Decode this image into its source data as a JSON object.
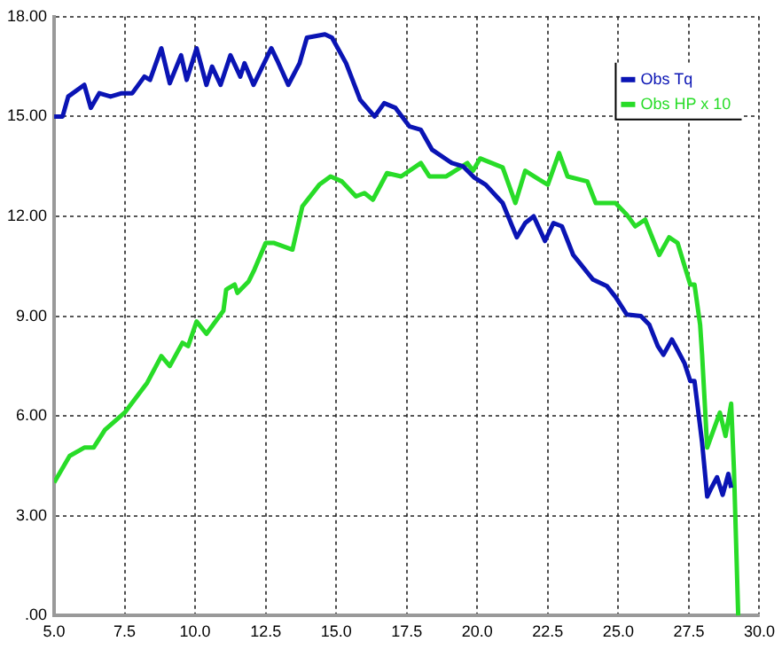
{
  "chart_data": {
    "type": "line",
    "xlim": [
      5,
      30
    ],
    "ylim": [
      0,
      18
    ],
    "xticks": [
      {
        "value": 5,
        "label": "5.0"
      },
      {
        "value": 7.5,
        "label": "7.5"
      },
      {
        "value": 10,
        "label": "10.0"
      },
      {
        "value": 12.5,
        "label": "12.5"
      },
      {
        "value": 15,
        "label": "15.0"
      },
      {
        "value": 17.5,
        "label": "17.5"
      },
      {
        "value": 20,
        "label": "20.0"
      },
      {
        "value": 22.5,
        "label": "22.5"
      },
      {
        "value": 25,
        "label": "25.0"
      },
      {
        "value": 27.5,
        "label": "27.5"
      },
      {
        "value": 30,
        "label": "30.0"
      }
    ],
    "yticks": [
      {
        "value": 0,
        "label": ".00"
      },
      {
        "value": 3,
        "label": "3.00"
      },
      {
        "value": 6,
        "label": "6.00"
      },
      {
        "value": 9,
        "label": "9.00"
      },
      {
        "value": 12,
        "label": "12.00"
      },
      {
        "value": 15,
        "label": "15.00"
      },
      {
        "value": 18,
        "label": "18.00"
      }
    ],
    "grid": true,
    "legend": "top right",
    "marker": "none",
    "line_style": "solid",
    "series": [
      {
        "name": "Obs Tq",
        "color": "#0a14b4",
        "x": [
          5.0,
          5.3,
          5.5,
          6.07,
          6.3,
          6.6,
          7.0,
          7.4,
          7.77,
          8.2,
          8.4,
          8.8,
          9.1,
          9.5,
          9.7,
          10.05,
          10.4,
          10.6,
          10.9,
          11.25,
          11.6,
          11.75,
          12.07,
          12.7,
          12.9,
          13.3,
          13.7,
          13.96,
          14.6,
          14.85,
          15.35,
          15.85,
          16.36,
          16.7,
          17.1,
          17.6,
          18.0,
          18.4,
          19.1,
          19.5,
          19.9,
          20.3,
          20.9,
          21.4,
          21.7,
          22.0,
          22.4,
          22.7,
          23.0,
          23.4,
          23.6,
          24.1,
          24.6,
          24.9,
          25.3,
          25.8,
          26.1,
          26.4,
          26.6,
          26.9,
          27.35,
          27.55,
          27.7,
          27.97,
          28.15,
          28.3,
          28.5,
          28.7,
          28.9,
          29.0
        ],
        "values": [
          15.0,
          15.0,
          15.6,
          15.95,
          15.26,
          15.7,
          15.6,
          15.7,
          15.7,
          16.2,
          16.1,
          17.05,
          16.0,
          16.84,
          16.1,
          17.05,
          15.95,
          16.5,
          15.95,
          16.84,
          16.2,
          16.6,
          15.95,
          17.05,
          16.7,
          15.95,
          16.6,
          17.37,
          17.47,
          17.37,
          16.6,
          15.5,
          15.0,
          15.4,
          15.26,
          14.7,
          14.6,
          14.0,
          13.6,
          13.5,
          13.16,
          12.95,
          12.4,
          11.37,
          11.8,
          12.0,
          11.26,
          11.8,
          11.7,
          10.84,
          10.63,
          10.1,
          9.9,
          9.58,
          9.05,
          9.0,
          8.74,
          8.1,
          7.84,
          8.3,
          7.58,
          7.05,
          7.05,
          5.2,
          3.58,
          3.84,
          4.16,
          3.63,
          4.26,
          3.84
        ]
      },
      {
        "name": "Obs HP x 10",
        "color": "#28dc28",
        "x": [
          5.0,
          5.55,
          6.07,
          6.4,
          6.8,
          7.5,
          8.3,
          8.8,
          9.1,
          9.55,
          9.75,
          10.05,
          10.4,
          11.0,
          11.1,
          11.4,
          11.5,
          11.9,
          12.1,
          12.5,
          12.8,
          13.45,
          13.8,
          14.4,
          14.8,
          15.2,
          15.7,
          16.0,
          16.3,
          16.8,
          17.3,
          18.0,
          18.3,
          18.9,
          19.65,
          19.85,
          20.1,
          20.9,
          21.35,
          21.7,
          22.2,
          22.5,
          22.9,
          23.2,
          23.9,
          24.2,
          24.9,
          25.3,
          25.6,
          25.95,
          26.45,
          26.8,
          27.1,
          27.55,
          27.7,
          27.9,
          27.97,
          28.15,
          28.3,
          28.6,
          28.8,
          29.0,
          29.1,
          29.25
        ],
        "values": [
          4.0,
          4.8,
          5.05,
          5.05,
          5.58,
          6.1,
          7.0,
          7.8,
          7.5,
          8.2,
          8.1,
          8.84,
          8.47,
          9.16,
          9.8,
          9.95,
          9.7,
          10.05,
          10.4,
          11.2,
          11.2,
          11.0,
          12.3,
          12.95,
          13.2,
          13.05,
          12.6,
          12.7,
          12.5,
          13.3,
          13.2,
          13.6,
          13.2,
          13.2,
          13.6,
          13.37,
          13.74,
          13.47,
          12.4,
          13.37,
          13.1,
          12.95,
          13.9,
          13.2,
          13.05,
          12.4,
          12.4,
          12.05,
          11.7,
          11.9,
          10.84,
          11.37,
          11.2,
          9.95,
          9.95,
          8.74,
          7.84,
          5.05,
          5.4,
          6.1,
          5.4,
          6.37,
          4.37,
          0
        ]
      }
    ]
  }
}
